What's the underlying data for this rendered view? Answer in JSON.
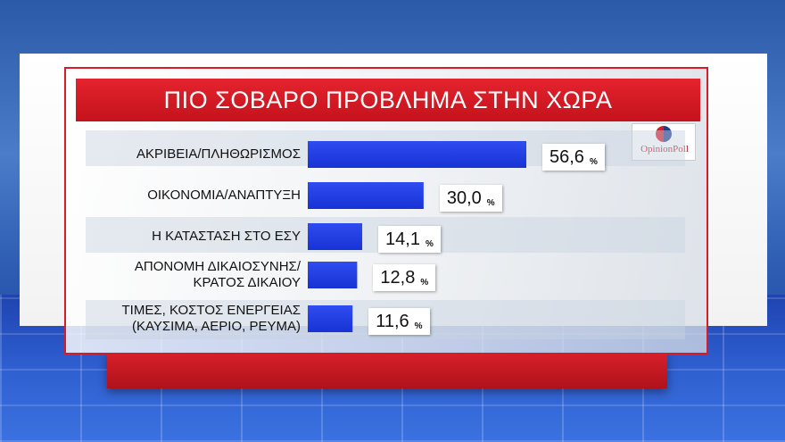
{
  "chart_data": {
    "type": "bar",
    "title": "ΠΙΟ ΣΟΒΑΡΟ ΠΡΟΒΛΗΜΑ ΣΤΗΝ ΧΩΡΑ",
    "categories": [
      "ΑΚΡΙΒΕΙΑ/ΠΛΗΘΩΡΙΣΜΟΣ",
      "ΟΙΚΟΝΟΜΙΑ/ΑΝΑΠΤΥΞΗ",
      "Η ΚΑΤΑΣΤΑΣΗ ΣΤΟ ΕΣΥ",
      "ΑΠΟΝΟΜΗ ΔΙΚΑΙΟΣΥΝΗΣ/\nΚΡΑΤΟΣ ΔΙΚΑΙΟΥ",
      "ΤΙΜΕΣ, ΚΟΣΤΟΣ ΕΝΕΡΓΕΙΑΣ\n(ΚΑΥΣΙΜΑ, ΑΕΡΙΟ, ΡΕΥΜΑ)"
    ],
    "values": [
      56.6,
      30.0,
      14.1,
      12.8,
      11.6
    ],
    "value_labels": [
      "56,6",
      "30,0",
      "14,1",
      "12,8",
      "11,6"
    ],
    "unit": "%",
    "orientation": "horizontal",
    "bar_color": "#1733d6",
    "xlim": [
      0,
      100
    ]
  },
  "brand": {
    "logo_text": "OpinionPoll",
    "accent": "#d51c27"
  }
}
